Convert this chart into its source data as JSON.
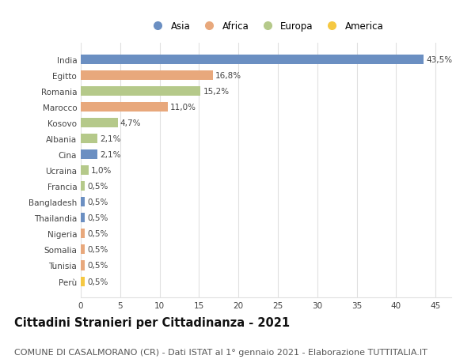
{
  "countries": [
    "India",
    "Egitto",
    "Romania",
    "Marocco",
    "Kosovo",
    "Albania",
    "Cina",
    "Ucraina",
    "Francia",
    "Bangladesh",
    "Thailandia",
    "Nigeria",
    "Somalia",
    "Tunisia",
    "Perù"
  ],
  "values": [
    43.5,
    16.8,
    15.2,
    11.0,
    4.7,
    2.1,
    2.1,
    1.0,
    0.5,
    0.5,
    0.5,
    0.5,
    0.5,
    0.5,
    0.5
  ],
  "labels": [
    "43,5%",
    "16,8%",
    "15,2%",
    "11,0%",
    "4,7%",
    "2,1%",
    "2,1%",
    "1,0%",
    "0,5%",
    "0,5%",
    "0,5%",
    "0,5%",
    "0,5%",
    "0,5%",
    "0,5%"
  ],
  "continents": [
    "Asia",
    "Africa",
    "Europa",
    "Africa",
    "Europa",
    "Europa",
    "Asia",
    "Europa",
    "Europa",
    "Asia",
    "Asia",
    "Africa",
    "Africa",
    "Africa",
    "America"
  ],
  "continent_colors": {
    "Asia": "#6b8fc2",
    "Africa": "#e8a87c",
    "Europa": "#b5c98a",
    "America": "#f5c842"
  },
  "legend_order": [
    "Asia",
    "Africa",
    "Europa",
    "America"
  ],
  "title": "Cittadini Stranieri per Cittadinanza - 2021",
  "subtitle": "COMUNE DI CASALMORANO (CR) - Dati ISTAT al 1° gennaio 2021 - Elaborazione TUTTITALIA.IT",
  "xlim": [
    0,
    47
  ],
  "xticks": [
    0,
    5,
    10,
    15,
    20,
    25,
    30,
    35,
    40,
    45
  ],
  "background_color": "#ffffff",
  "grid_color": "#e0e0e0",
  "title_fontsize": 10.5,
  "subtitle_fontsize": 8,
  "label_fontsize": 7.5,
  "tick_fontsize": 7.5,
  "legend_fontsize": 8.5
}
